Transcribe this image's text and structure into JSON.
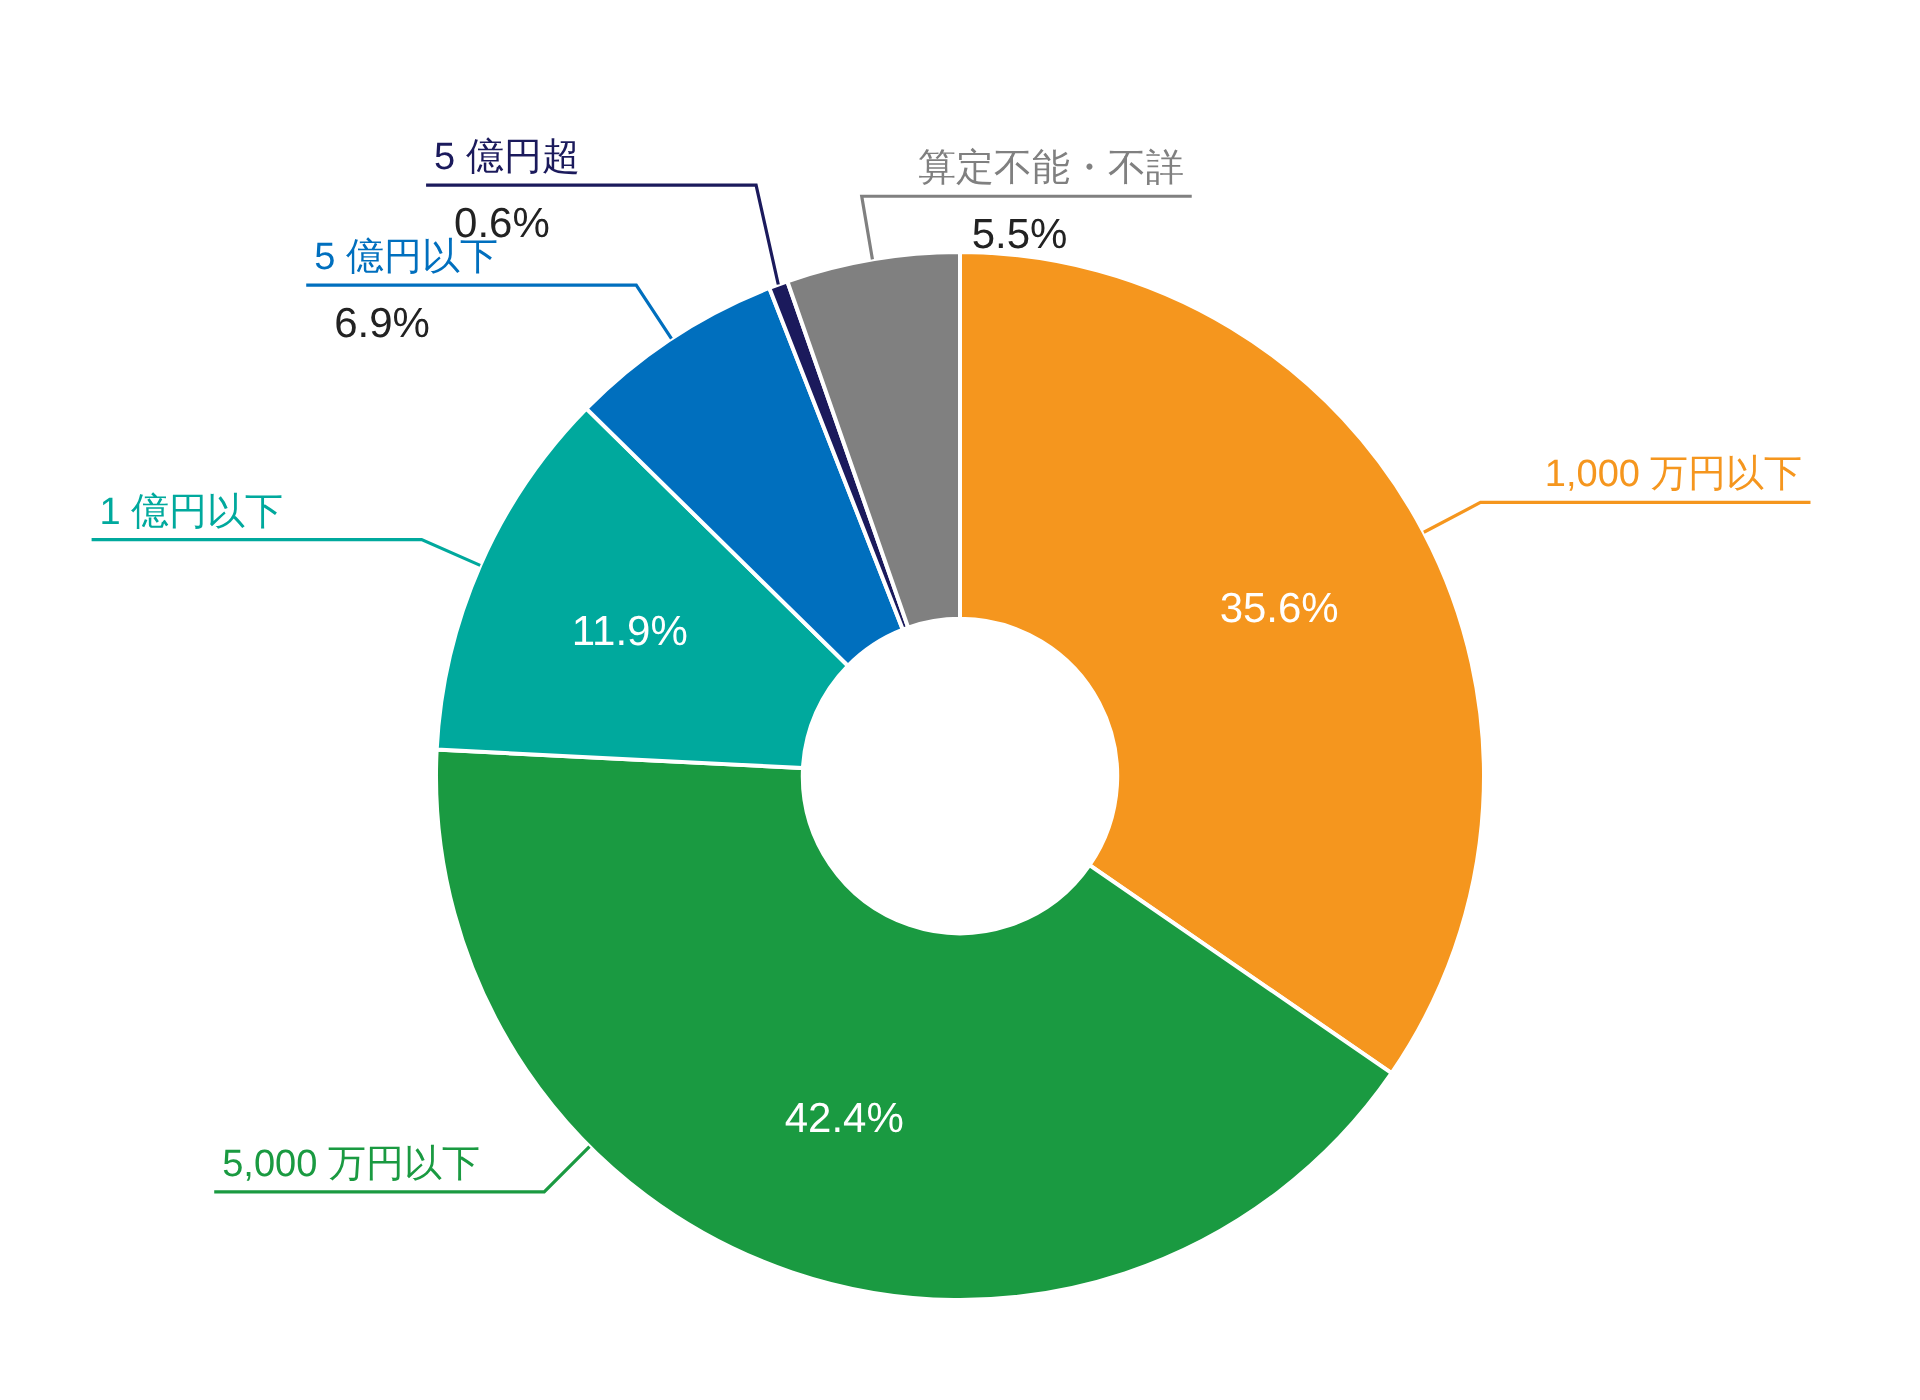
{
  "chart_data": {
    "type": "donut",
    "categories": [
      "1,000 万円以下",
      "5,000 万円以下",
      "1 億円以下",
      "5 億円以下",
      "5 億円超",
      "算定不能・不詳"
    ],
    "values": [
      35.6,
      42.4,
      11.9,
      6.9,
      0.6,
      5.5
    ],
    "colors": [
      "#f5961e",
      "#1a9a41",
      "#00a99d",
      "#006fbe",
      "#1b1a5c",
      "#808080"
    ],
    "value_labels": [
      "35.6%",
      "42.4%",
      "11.9%",
      "6.9%",
      "0.6%",
      "5.5%"
    ]
  }
}
